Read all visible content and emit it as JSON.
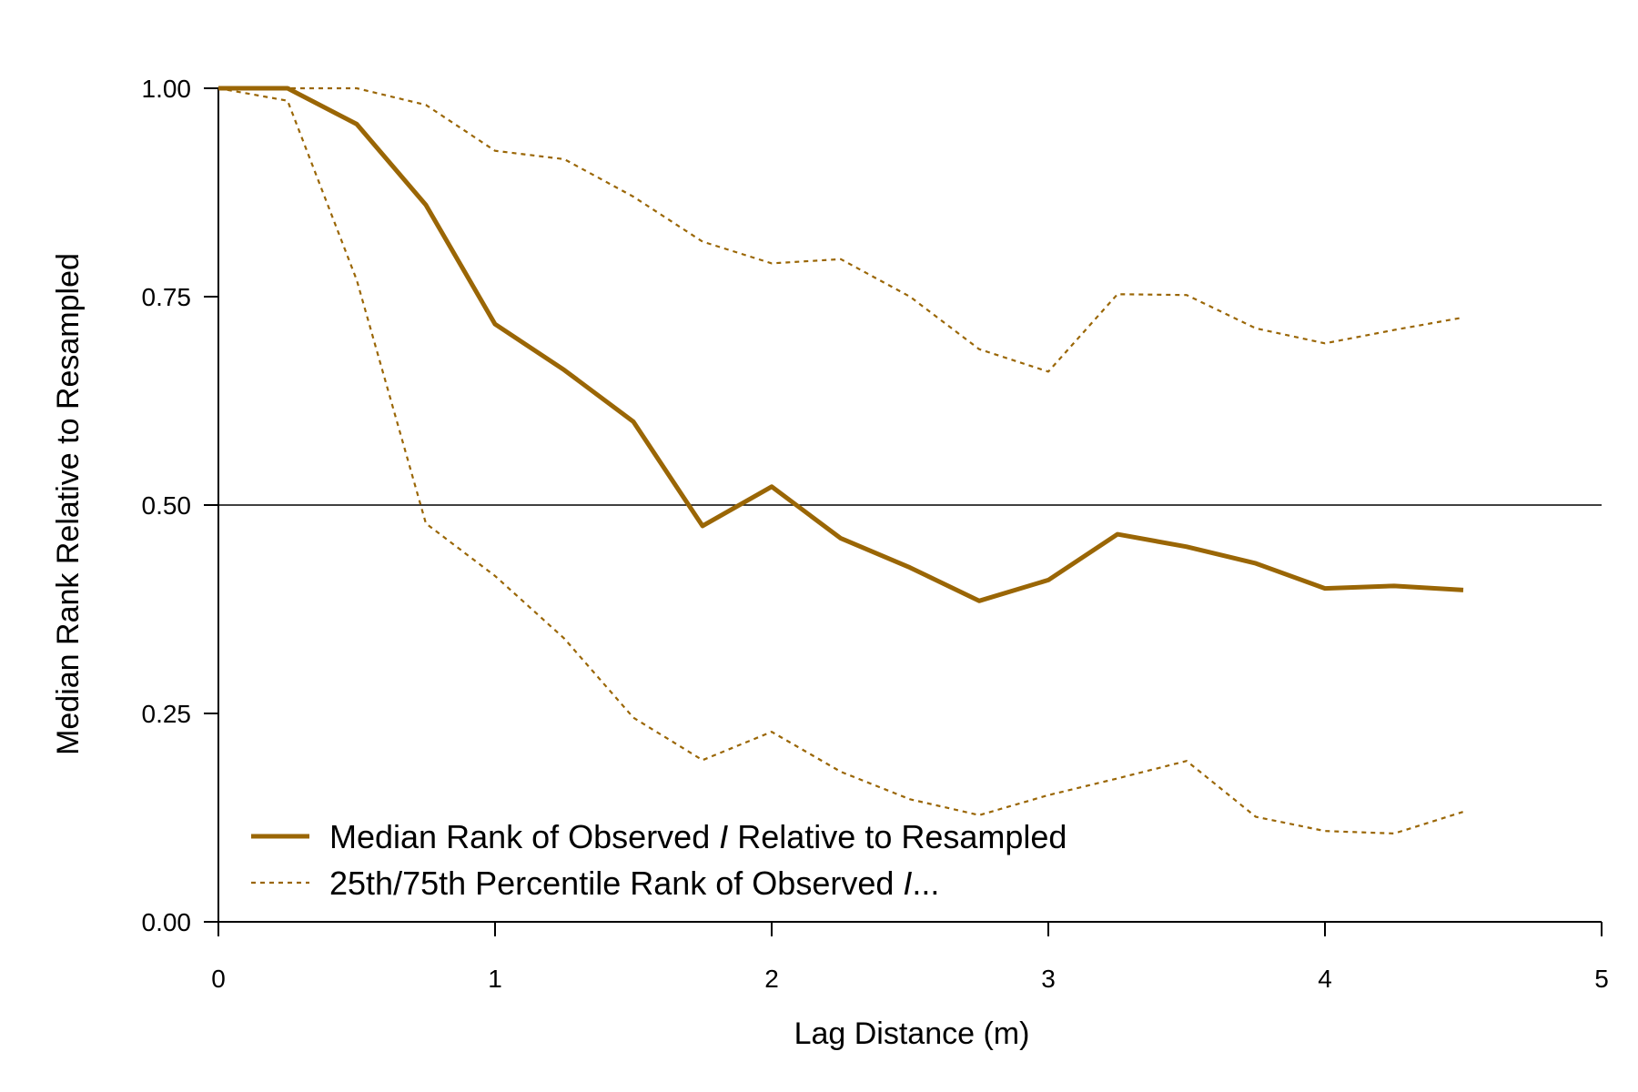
{
  "chart_data": {
    "type": "line",
    "title": "",
    "xlabel": "Lag Distance (m)",
    "ylabel": "Median Rank Relative to Resampled",
    "xlim": [
      0,
      5
    ],
    "ylim": [
      0,
      1
    ],
    "xticks": [
      0,
      1,
      2,
      3,
      4,
      5
    ],
    "xtick_labels": [
      "0",
      "1",
      "2",
      "3",
      "4",
      "5"
    ],
    "yticks": [
      0,
      0.25,
      0.5,
      0.75,
      1
    ],
    "ytick_labels": [
      "0.00",
      "0.25",
      "0.50",
      "0.75",
      "1.00"
    ],
    "reference_line": {
      "y": 0.5,
      "color": "#000000"
    },
    "grid": false,
    "legend_position": "bottom-left",
    "x": [
      0,
      0.25,
      0.5,
      0.75,
      1,
      1.25,
      1.5,
      1.75,
      2,
      2.25,
      2.5,
      2.75,
      3,
      3.25,
      3.5,
      3.75,
      4,
      4.25,
      4.5
    ],
    "series": [
      {
        "name": "Median Rank of Observed I Relative to Resampled",
        "style": "solid",
        "color": "#9A6605",
        "values": [
          1.0,
          1.0,
          0.957,
          0.86,
          0.717,
          0.662,
          0.6,
          0.475,
          0.522,
          0.46,
          0.425,
          0.385,
          0.41,
          0.465,
          0.45,
          0.43,
          0.4,
          0.403,
          0.398
        ]
      },
      {
        "name": "25th Percentile Rank of Observed I",
        "style": "dotted",
        "color": "#9A6605",
        "values": [
          1.0,
          0.985,
          0.77,
          0.478,
          0.415,
          0.34,
          0.245,
          0.194,
          0.228,
          0.18,
          0.147,
          0.128,
          0.152,
          0.172,
          0.193,
          0.126,
          0.109,
          0.106,
          0.132
        ]
      },
      {
        "name": "75th Percentile Rank of Observed I",
        "style": "dotted",
        "color": "#9A6605",
        "values": [
          1.0,
          1.0,
          1.0,
          0.98,
          0.925,
          0.915,
          0.87,
          0.816,
          0.79,
          0.795,
          0.75,
          0.687,
          0.66,
          0.753,
          0.752,
          0.712,
          0.694,
          0.71,
          0.725
        ]
      }
    ],
    "legend": [
      {
        "style": "solid",
        "text_before": "Median Rank of Observed ",
        "italic": "I",
        "text_after": " Relative to Resampled"
      },
      {
        "style": "dotted",
        "text_before": "25th/75th Percentile Rank of Observed ",
        "italic": "I",
        "text_after": "..."
      }
    ]
  }
}
